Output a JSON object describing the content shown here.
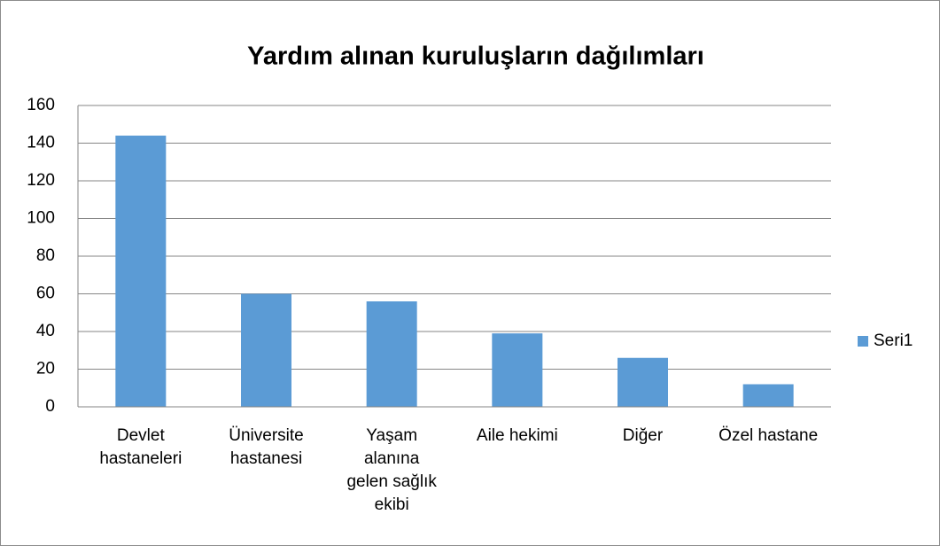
{
  "chart_data": {
    "type": "bar",
    "title": "Yardım alınan kuruluşların dağılımları",
    "categories": [
      "Devlet hastaneleri",
      "Üniversite hastanesi",
      "Yaşam alanına gelen sağlık ekibi",
      "Aile hekimi",
      "Diğer",
      "Özel hastane"
    ],
    "series": [
      {
        "name": "Seri1",
        "color": "#5b9bd5",
        "values": [
          144,
          60,
          56,
          39,
          26,
          12
        ]
      }
    ],
    "ylim": [
      0,
      160
    ],
    "yticks": [
      0,
      20,
      40,
      60,
      80,
      100,
      120,
      140,
      160
    ],
    "grid": true,
    "legend": "right"
  }
}
